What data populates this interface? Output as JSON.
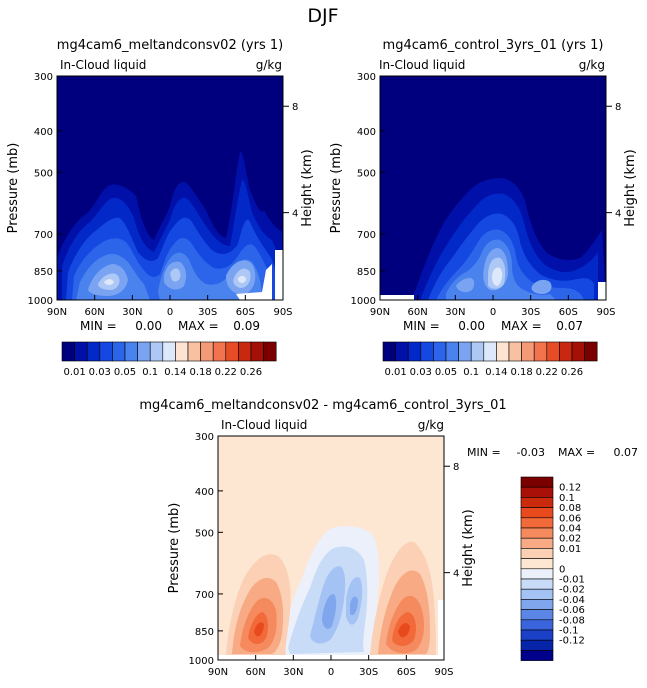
{
  "page": {
    "title": "DJF"
  },
  "chart_data": [
    {
      "id": "p1",
      "type": "contour",
      "title": "mg4cam6_meltandconsv02 (yrs 1)",
      "subtitle_left": "In-Cloud liquid",
      "subtitle_right": "g/kg",
      "ylabel": "Pressure (mb)",
      "ylabel_right": "Height (km)",
      "x_ticks": [
        "90N",
        "60N",
        "30N",
        "0",
        "30S",
        "60S",
        "90S"
      ],
      "y_ticks": [
        "300",
        "400",
        "500",
        "700",
        "850",
        "1000"
      ],
      "y_ticks_right": [
        "8",
        "4"
      ],
      "min_label": "MIN =",
      "min_value": "0.00",
      "max_label": "MAX =",
      "max_value": "0.09",
      "colorbar_labels": [
        "0.01",
        "0.03",
        "0.05",
        "0.1",
        "0.14",
        "0.18",
        "0.22",
        "0.26"
      ]
    },
    {
      "id": "p2",
      "type": "contour",
      "title": "mg4cam6_control_3yrs_01 (yrs 1)",
      "subtitle_left": "In-Cloud liquid",
      "subtitle_right": "g/kg",
      "ylabel": "Pressure (mb)",
      "ylabel_right": "Height (km)",
      "x_ticks": [
        "90N",
        "60N",
        "30N",
        "0",
        "30S",
        "60S",
        "90S"
      ],
      "y_ticks": [
        "300",
        "400",
        "500",
        "700",
        "850",
        "1000"
      ],
      "y_ticks_right": [
        "8",
        "4"
      ],
      "min_label": "MIN =",
      "min_value": "0.00",
      "max_label": "MAX =",
      "max_value": "0.07",
      "colorbar_labels": [
        "0.01",
        "0.03",
        "0.05",
        "0.1",
        "0.14",
        "0.18",
        "0.22",
        "0.26"
      ]
    },
    {
      "id": "p3",
      "type": "contour",
      "title": "mg4cam6_meltandconsv02 - mg4cam6_control_3yrs_01",
      "subtitle_left": "In-Cloud liquid",
      "subtitle_right": "g/kg",
      "ylabel": "Pressure (mb)",
      "ylabel_right": "Height (km)",
      "x_ticks": [
        "90N",
        "60N",
        "30N",
        "0",
        "30S",
        "60S",
        "90S"
      ],
      "y_ticks": [
        "300",
        "400",
        "500",
        "700",
        "850",
        "1000"
      ],
      "y_ticks_right": [
        "8",
        "4"
      ],
      "min_label": "MIN =",
      "min_value": "-0.03",
      "max_label": "MAX =",
      "max_value": "0.07",
      "colorbar_labels": [
        "0.12",
        "0.1",
        "0.08",
        "0.06",
        "0.04",
        "0.02",
        "0.01",
        "0",
        "-0.01",
        "-0.02",
        "-0.04",
        "-0.06",
        "-0.08",
        "-0.1",
        "-0.12"
      ]
    }
  ],
  "colors": {
    "seq": [
      "#00007f",
      "#0010a8",
      "#0228c8",
      "#1448e0",
      "#2c64ea",
      "#4a82ee",
      "#7aa4f2",
      "#aec8f6",
      "#dde8fa",
      "#fde4d2",
      "#f9c0a2",
      "#f59a76",
      "#f1744e",
      "#e84c26",
      "#c82810",
      "#a41006",
      "#7a0000"
    ],
    "diff": [
      "#7a0000",
      "#a81008",
      "#cc2a0c",
      "#e84a1e",
      "#f26a3a",
      "#f58a5e",
      "#f7aa84",
      "#fbd0b4",
      "#fde6d2",
      "#ecf0fa",
      "#c8dcf8",
      "#a4c2f4",
      "#80a6ee",
      "#5c86e6",
      "#3a64dc",
      "#1a40c8",
      "#0624a8",
      "#00008a"
    ]
  }
}
